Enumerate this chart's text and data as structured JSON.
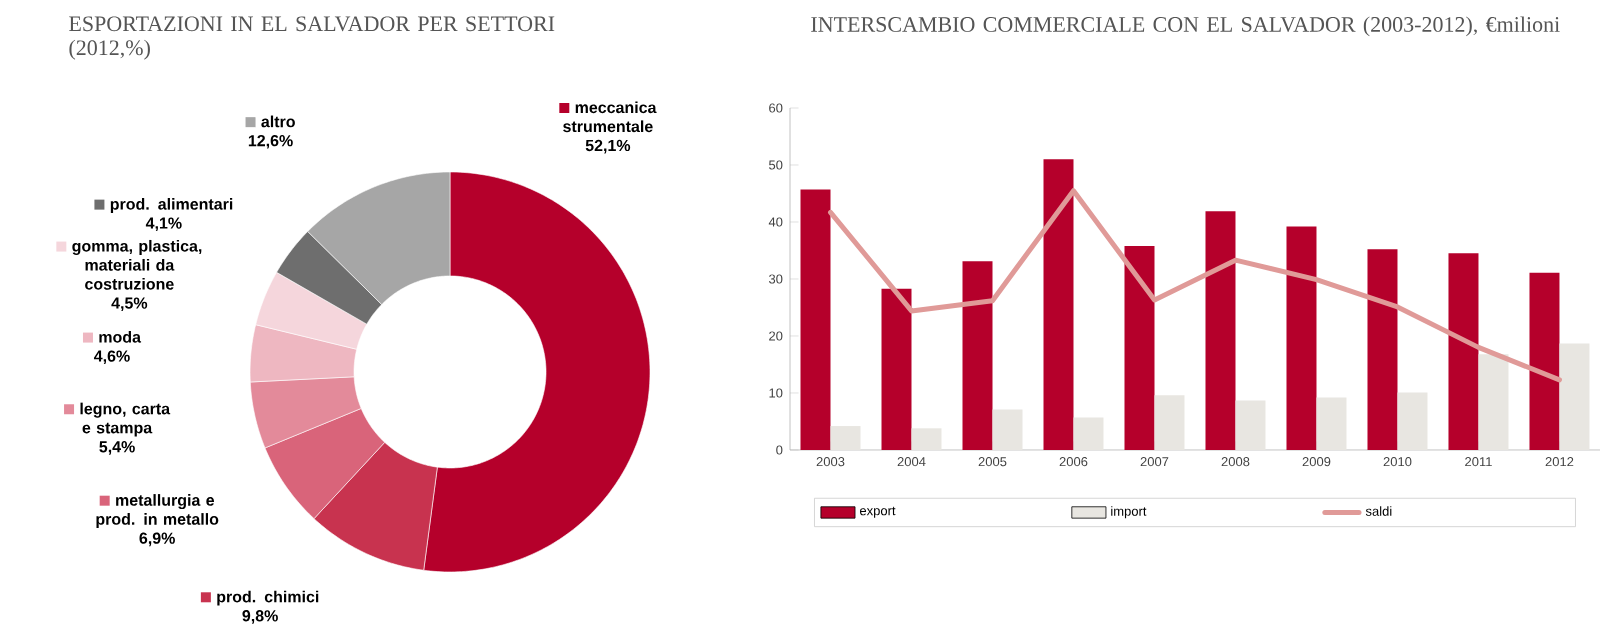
{
  "chart_data": [
    {
      "type": "donut",
      "title": "ESPORTAZIONI IN EL SALVADOR PER SETTORI",
      "subtitle": "(2012,%)",
      "categories": [
        "meccanica strumentale",
        "prod. chimici",
        "metallurgia e prod. in metallo",
        "legno, carta e stampa",
        "moda",
        "gomma, plastica, materiali da costruzione",
        "prod. alimentari",
        "altro"
      ],
      "values": [
        52.1,
        9.8,
        6.9,
        5.4,
        4.6,
        4.5,
        4.1,
        12.6
      ],
      "value_labels": [
        "52,1%",
        "9,8%",
        "6,9%",
        "5,4%",
        "4,6%",
        "4,5%",
        "4,1%",
        "12,6%"
      ],
      "colors": [
        "#b5002b",
        "#c8334f",
        "#d9647a",
        "#e38a9a",
        "#eeb7c1",
        "#f5d6dc",
        "#6e6e6e",
        "#a6a6a6"
      ],
      "legend": "left"
    },
    {
      "type": "bar",
      "title": "INTERSCAMBIO COMMERCIALE CON EL SALVADOR (2003-2012), €milioni",
      "categories": [
        "2003",
        "2004",
        "2005",
        "2006",
        "2007",
        "2008",
        "2009",
        "2010",
        "2011",
        "2012"
      ],
      "series": [
        {
          "name": "export",
          "color": "#b5002b",
          "values": [
            45.7,
            28.3,
            33.1,
            51.0,
            35.8,
            41.9,
            39.2,
            35.2,
            34.5,
            31.1
          ]
        },
        {
          "name": "import",
          "color": "#e8e6e1",
          "values": [
            4.2,
            3.8,
            7.1,
            5.7,
            9.6,
            8.7,
            9.2,
            10.1,
            16.8,
            18.7
          ]
        },
        {
          "name": "saldi",
          "type": "line",
          "color": "#e09a98",
          "values": [
            41.7,
            24.4,
            26.2,
            45.5,
            26.3,
            33.3,
            29.9,
            25.1,
            18.0,
            12.3
          ]
        }
      ],
      "ylim": [
        0,
        60
      ],
      "yticks": [
        0,
        10,
        20,
        30,
        40,
        50,
        60
      ],
      "legend": "bottom",
      "grid": false
    }
  ]
}
